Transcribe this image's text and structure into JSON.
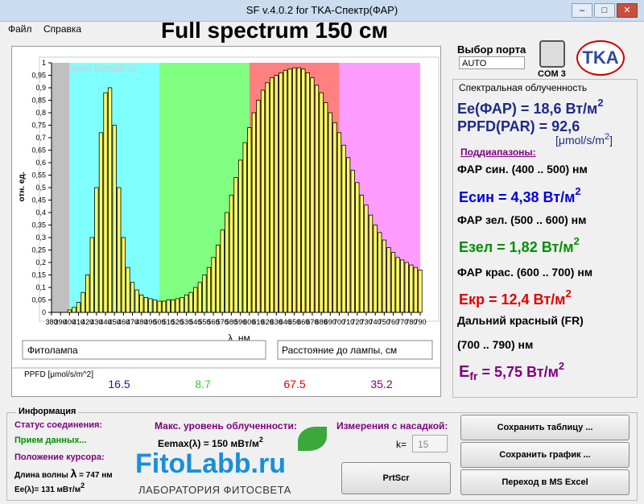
{
  "window": {
    "title": "SF v.4.0.2 for TKA-Спектр(ФАР)",
    "menu": [
      "Файл",
      "Справка"
    ]
  },
  "header": {
    "title": "Full spectrum 150 см",
    "port_label": "Выбор порта",
    "port_value": "AUTO",
    "com": "COM 3",
    "logo": "TKA"
  },
  "chart_data": {
    "type": "bar",
    "watermark": "www.tkaspb.ru",
    "y_label": "отн. ед.",
    "x_label": "λ, нм",
    "color": "#ffff66",
    "bands": [
      {
        "from": 380,
        "to": 400,
        "color": "#c0c0c0"
      },
      {
        "from": 400,
        "to": 500,
        "color": "#80ffff"
      },
      {
        "from": 500,
        "to": 600,
        "color": "#80ff80"
      },
      {
        "from": 600,
        "to": 700,
        "color": "#ff8080"
      },
      {
        "from": 700,
        "to": 790,
        "color": "#ff9cff"
      }
    ],
    "x": [
      400,
      405,
      410,
      415,
      420,
      425,
      430,
      435,
      440,
      445,
      450,
      455,
      460,
      465,
      470,
      475,
      480,
      485,
      490,
      495,
      500,
      505,
      510,
      515,
      520,
      525,
      530,
      535,
      540,
      545,
      550,
      555,
      560,
      565,
      570,
      575,
      580,
      585,
      590,
      595,
      600,
      605,
      610,
      615,
      620,
      625,
      630,
      635,
      640,
      645,
      650,
      655,
      660,
      665,
      670,
      675,
      680,
      685,
      690,
      695,
      700,
      705,
      710,
      715,
      720,
      725,
      730,
      735,
      740,
      745,
      750,
      755,
      760,
      765,
      770,
      775,
      780,
      785,
      790
    ],
    "values": [
      0.01,
      0.02,
      0.04,
      0.08,
      0.15,
      0.3,
      0.5,
      0.72,
      0.88,
      0.9,
      0.75,
      0.5,
      0.3,
      0.18,
      0.12,
      0.09,
      0.07,
      0.06,
      0.055,
      0.05,
      0.045,
      0.045,
      0.05,
      0.05,
      0.055,
      0.06,
      0.07,
      0.08,
      0.1,
      0.12,
      0.15,
      0.18,
      0.22,
      0.27,
      0.33,
      0.4,
      0.47,
      0.54,
      0.61,
      0.68,
      0.74,
      0.8,
      0.85,
      0.89,
      0.92,
      0.94,
      0.95,
      0.96,
      0.97,
      0.975,
      0.98,
      0.98,
      0.975,
      0.96,
      0.94,
      0.91,
      0.88,
      0.84,
      0.8,
      0.76,
      0.72,
      0.67,
      0.62,
      0.57,
      0.52,
      0.47,
      0.43,
      0.39,
      0.35,
      0.32,
      0.29,
      0.26,
      0.24,
      0.22,
      0.21,
      0.2,
      0.19,
      0.18,
      0.17
    ],
    "xlim": [
      380,
      790
    ],
    "xticks": [
      380,
      390,
      400,
      410,
      420,
      430,
      440,
      450,
      460,
      470,
      480,
      490,
      500,
      510,
      520,
      530,
      540,
      550,
      560,
      570,
      580,
      590,
      600,
      610,
      620,
      630,
      640,
      650,
      660,
      670,
      680,
      690,
      700,
      710,
      720,
      730,
      740,
      750,
      760,
      770,
      780,
      790
    ],
    "ylim": [
      0,
      1
    ],
    "yticks": [
      0,
      {
        "value": 0.05,
        "label": "0,05"
      },
      {
        "value": 0.1,
        "label": "0,1"
      },
      {
        "value": 0.15,
        "label": "0,15"
      },
      {
        "value": 0.2,
        "label": "0,2"
      },
      {
        "value": 0.25,
        "label": "0,25"
      },
      {
        "value": 0.3,
        "label": "0,3"
      },
      {
        "value": 0.35,
        "label": "0,35"
      },
      {
        "value": 0.4,
        "label": "0,4"
      },
      {
        "value": 0.45,
        "label": "0,45"
      },
      {
        "value": 0.5,
        "label": "0,5"
      },
      {
        "value": 0.55,
        "label": "0,55"
      },
      {
        "value": 0.6,
        "label": "0,6"
      },
      {
        "value": 0.65,
        "label": "0,65"
      },
      {
        "value": 0.7,
        "label": "0,7"
      },
      {
        "value": 0.75,
        "label": "0,75"
      },
      {
        "value": 0.8,
        "label": "0,8"
      },
      {
        "value": 0.85,
        "label": "0,85"
      },
      {
        "value": 0.9,
        "label": "0,9"
      },
      {
        "value": 0.95,
        "label": "0,95"
      },
      1
    ],
    "grid": false
  },
  "legend_boxes": {
    "lamp": "Фитолампа",
    "distance": "Расстояние до лампы,  см"
  },
  "ppfd": {
    "label": "PPFD [μmol/s/m^2]",
    "values": [
      16.5,
      8.7,
      67.5,
      35.2
    ]
  },
  "irradiance": {
    "title": "Спектральная облученность",
    "ee_par": "Ee(ФАР) = 18,6 Вт/м",
    "sup": "2",
    "ppfd": "PPFD(PAR) = 92,6",
    "ppfd_unit": "[μmol/s/m",
    "ppfd_unit_end": "]",
    "subranges": "Поддиапазоны:",
    "blue_range": "ФАР син. (400 .. 500) нм",
    "e_blue": "Есин = 4,38 Вт/м",
    "green_range": "ФАР зел. (500 .. 600) нм",
    "e_green": "Езел = 1,82 Вт/м",
    "red_range": "ФАР крас. (600 .. 700) нм",
    "e_red": "Екр = 12,4 Вт/м",
    "fr_range": "Дальний красный (FR)",
    "fr_range2": "(700 .. 790) нм",
    "e_fr": "E",
    "e_fr_sub": "fr",
    "e_fr_rest": " = 5,75 Вт/м"
  },
  "info": {
    "title": "Информация",
    "status_label": "Статус соединения:",
    "status": "Прием данных...",
    "cursor_label": "Положение курсора:",
    "wavelength": "Длина волны",
    "lambda": "λ",
    "wavelength_value": " = 747 нм",
    "ee_cursor": "Ee(λ)= 131 мВт/м",
    "max_label": "Макс. уровень облученности:",
    "ee_max": "Eemax(λ) = 150 мВт/м",
    "attach_label": "Измерения с насадкой:",
    "k_label": "k=",
    "k_value": "15",
    "prtscr": "PrtScr",
    "brand": "FitoLabb.ru",
    "brand_sub": "ЛАБОРАТОРИЯ ФИТОСВЕТА",
    "buttons": [
      "Сохранить таблицу ...",
      "Сохранить график ...",
      "Переход в MS Excel"
    ]
  }
}
